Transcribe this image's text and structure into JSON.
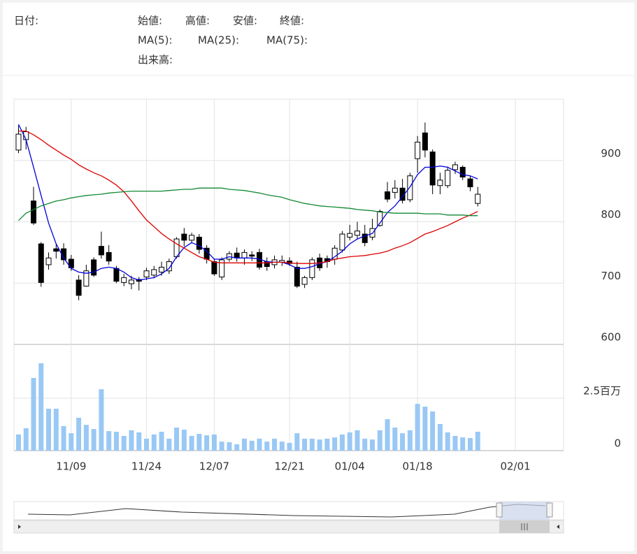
{
  "header": {
    "date_label": "日付:",
    "open_label": "始値:",
    "high_label": "高値:",
    "low_label": "安値:",
    "close_label": "終値:",
    "volume_label": "出来高:"
  },
  "chart_data": {
    "type": "candlestick",
    "xlim": [
      -0.6,
      72.4
    ],
    "xticks": [
      {
        "value": 7,
        "label": "11/09"
      },
      {
        "value": 17,
        "label": "11/24"
      },
      {
        "value": 26,
        "label": "12/07"
      },
      {
        "value": 36,
        "label": "12/21"
      },
      {
        "value": 44,
        "label": "01/04"
      },
      {
        "value": 53,
        "label": "01/18"
      },
      {
        "value": 66,
        "label": "02/01"
      }
    ],
    "ylim": [
      600,
      1000
    ],
    "yticks": [
      600,
      700,
      800,
      900
    ],
    "grid": true,
    "up_color": "#ffffff",
    "down_color": "#000000",
    "open": [
      917,
      934,
      834,
      764,
      730,
      756,
      756,
      739,
      705,
      695,
      738,
      760,
      750,
      724,
      701,
      699,
      706,
      710,
      713,
      718,
      720,
      743,
      780,
      770,
      775,
      757,
      735,
      710,
      739,
      749,
      741,
      746,
      750,
      735,
      730,
      734,
      736,
      726,
      698,
      709,
      741,
      740,
      739,
      754,
      775,
      778,
      780,
      775,
      794,
      849,
      848,
      855,
      836,
      903,
      945,
      914,
      859,
      859,
      885,
      889,
      870,
      830
    ],
    "high": [
      957,
      955,
      857,
      767,
      750,
      763,
      765,
      746,
      713,
      730,
      742,
      784,
      762,
      728,
      715,
      712,
      710,
      725,
      728,
      735,
      740,
      775,
      790,
      782,
      780,
      762,
      740,
      742,
      752,
      758,
      755,
      752,
      756,
      742,
      745,
      745,
      742,
      735,
      712,
      742,
      748,
      745,
      762,
      785,
      795,
      800,
      795,
      805,
      820,
      865,
      868,
      870,
      880,
      940,
      962,
      918,
      880,
      890,
      898,
      892,
      875,
      857
    ],
    "low": [
      912,
      918,
      795,
      694,
      722,
      740,
      730,
      720,
      672,
      694,
      710,
      740,
      730,
      700,
      695,
      690,
      688,
      705,
      708,
      712,
      715,
      740,
      760,
      765,
      748,
      732,
      712,
      705,
      735,
      735,
      730,
      736,
      722,
      720,
      724,
      728,
      728,
      692,
      692,
      705,
      720,
      725,
      730,
      750,
      770,
      772,
      760,
      770,
      792,
      832,
      838,
      830,
      832,
      880,
      905,
      845,
      845,
      855,
      878,
      868,
      850,
      825
    ],
    "close": [
      943,
      947,
      798,
      701,
      741,
      752,
      738,
      725,
      680,
      720,
      713,
      746,
      736,
      703,
      709,
      705,
      703,
      720,
      722,
      726,
      735,
      772,
      770,
      778,
      755,
      739,
      715,
      738,
      748,
      741,
      750,
      744,
      726,
      727,
      738,
      737,
      732,
      695,
      709,
      738,
      725,
      735,
      757,
      780,
      781,
      785,
      766,
      789,
      817,
      837,
      855,
      835,
      875,
      930,
      917,
      860,
      868,
      884,
      893,
      873,
      857,
      845
    ],
    "series": [
      {
        "name": "MA(5):",
        "color": "#0000dd",
        "values": [
          959,
          934,
          889,
          843,
          798,
          764,
          741,
          724,
          718,
          716,
          718,
          724,
          726,
          724,
          718,
          709,
          705,
          707,
          709,
          715,
          724,
          743,
          758,
          766,
          761,
          752,
          739,
          739,
          743,
          741,
          741,
          741,
          739,
          735,
          734,
          734,
          730,
          724,
          724,
          727,
          732,
          735,
          743,
          752,
          764,
          772,
          777,
          781,
          798,
          815,
          826,
          841,
          857,
          877,
          889,
          889,
          891,
          889,
          883,
          877,
          875,
          870
        ]
      },
      {
        "name": "MA(25):",
        "color": "#dd0000",
        "values": [
          948,
          948,
          942,
          934,
          925,
          917,
          909,
          902,
          893,
          886,
          880,
          875,
          868,
          860,
          849,
          834,
          818,
          803,
          792,
          781,
          772,
          764,
          757,
          750,
          743,
          739,
          734,
          733,
          733,
          733,
          733,
          733,
          733,
          733,
          734,
          734,
          733,
          732,
          732,
          732,
          733,
          735,
          739,
          741,
          743,
          744,
          745,
          747,
          749,
          752,
          757,
          761,
          766,
          773,
          780,
          784,
          789,
          794,
          800,
          806,
          811,
          817
        ]
      },
      {
        "name": "MA(75):",
        "color": "#118833",
        "values": [
          802,
          814,
          820,
          826,
          830,
          834,
          836,
          839,
          841,
          843,
          844,
          845,
          847,
          848,
          849,
          850,
          850,
          850,
          850,
          850,
          851,
          852,
          853,
          853,
          855,
          855,
          855,
          855,
          853,
          852,
          851,
          849,
          847,
          844,
          842,
          840,
          836,
          833,
          830,
          828,
          826,
          825,
          824,
          823,
          822,
          820,
          819,
          818,
          816,
          815,
          814,
          814,
          814,
          814,
          813,
          813,
          813,
          811,
          811,
          811,
          810,
          810
        ]
      }
    ],
    "volume": {
      "color": "#99c8f5",
      "ylim": [
        0,
        5.07
      ],
      "yticks": [
        0,
        {
          "value": 2.5,
          "label": "2.5百万"
        }
      ],
      "values": [
        0.77,
        1.07,
        3.47,
        4.17,
        2.0,
        2.0,
        1.17,
        0.83,
        1.57,
        1.23,
        1.03,
        2.93,
        0.93,
        0.9,
        0.7,
        0.97,
        0.87,
        0.57,
        0.77,
        0.9,
        0.57,
        1.1,
        1.0,
        0.7,
        0.8,
        0.73,
        0.77,
        0.43,
        0.4,
        0.3,
        0.57,
        0.47,
        0.57,
        0.43,
        0.57,
        0.43,
        0.37,
        0.83,
        0.57,
        0.57,
        0.53,
        0.57,
        0.63,
        0.77,
        0.87,
        0.97,
        0.57,
        0.53,
        0.97,
        1.5,
        1.1,
        0.83,
        0.97,
        2.23,
        2.1,
        1.87,
        1.27,
        0.87,
        0.7,
        0.63,
        0.6,
        0.9
      ]
    }
  }
}
